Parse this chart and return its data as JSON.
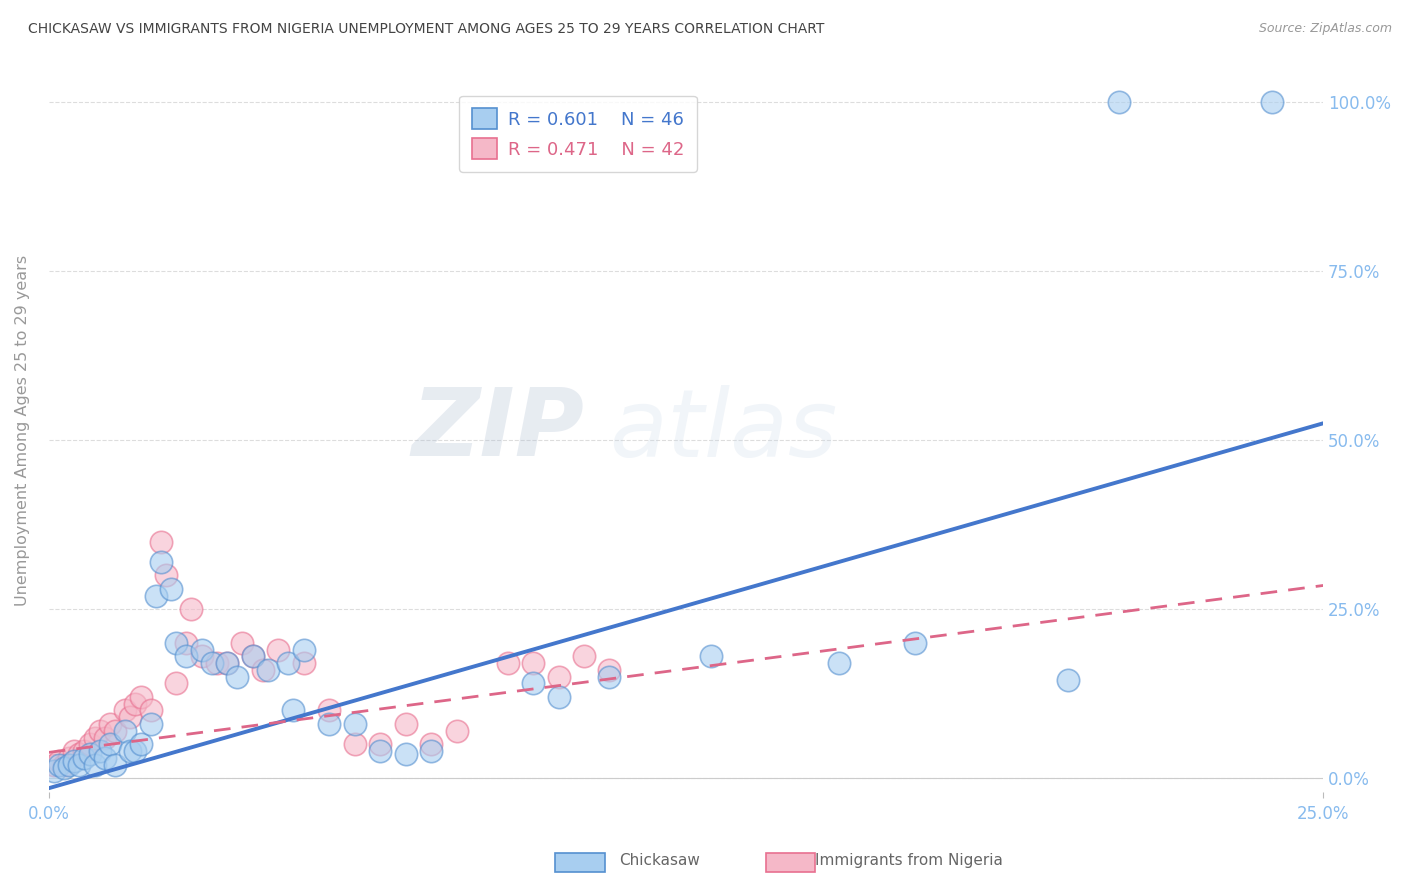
{
  "title": "CHICKASAW VS IMMIGRANTS FROM NIGERIA UNEMPLOYMENT AMONG AGES 25 TO 29 YEARS CORRELATION CHART",
  "source": "Source: ZipAtlas.com",
  "ylabel": "Unemployment Among Ages 25 to 29 years",
  "xlim": [
    0.0,
    0.25
  ],
  "ylim": [
    -0.02,
    1.05
  ],
  "ytick_labels": [
    "0.0%",
    "25.0%",
    "50.0%",
    "75.0%",
    "100.0%"
  ],
  "ytick_values": [
    0.0,
    0.25,
    0.5,
    0.75,
    1.0
  ],
  "xtick_labels": [
    "0.0%",
    "25.0%"
  ],
  "xtick_values": [
    0.0,
    0.25
  ],
  "watermark_zip": "ZIP",
  "watermark_atlas": "atlas",
  "legend_blue_R": "R = 0.601",
  "legend_blue_N": "N = 46",
  "legend_pink_R": "R = 0.471",
  "legend_pink_N": "N = 42",
  "blue_color": "#A8CEF0",
  "pink_color": "#F5B8C8",
  "blue_edge_color": "#5590D0",
  "pink_edge_color": "#E87090",
  "blue_line_color": "#4477CC",
  "pink_line_color": "#DD6688",
  "title_color": "#444444",
  "axis_label_color": "#999999",
  "right_tick_color": "#88BBEE",
  "grid_color": "#DDDDDD",
  "blue_scatter": [
    [
      0.001,
      0.01
    ],
    [
      0.002,
      0.02
    ],
    [
      0.003,
      0.015
    ],
    [
      0.004,
      0.02
    ],
    [
      0.005,
      0.025
    ],
    [
      0.006,
      0.02
    ],
    [
      0.007,
      0.03
    ],
    [
      0.008,
      0.035
    ],
    [
      0.009,
      0.02
    ],
    [
      0.01,
      0.04
    ],
    [
      0.011,
      0.03
    ],
    [
      0.012,
      0.05
    ],
    [
      0.013,
      0.02
    ],
    [
      0.015,
      0.07
    ],
    [
      0.016,
      0.04
    ],
    [
      0.017,
      0.04
    ],
    [
      0.018,
      0.05
    ],
    [
      0.02,
      0.08
    ],
    [
      0.021,
      0.27
    ],
    [
      0.022,
      0.32
    ],
    [
      0.024,
      0.28
    ],
    [
      0.025,
      0.2
    ],
    [
      0.027,
      0.18
    ],
    [
      0.03,
      0.19
    ],
    [
      0.032,
      0.17
    ],
    [
      0.035,
      0.17
    ],
    [
      0.037,
      0.15
    ],
    [
      0.04,
      0.18
    ],
    [
      0.043,
      0.16
    ],
    [
      0.047,
      0.17
    ],
    [
      0.05,
      0.19
    ],
    [
      0.055,
      0.08
    ],
    [
      0.06,
      0.08
    ],
    [
      0.065,
      0.04
    ],
    [
      0.07,
      0.035
    ],
    [
      0.075,
      0.04
    ],
    [
      0.095,
      0.14
    ],
    [
      0.1,
      0.12
    ],
    [
      0.11,
      0.15
    ],
    [
      0.13,
      0.18
    ],
    [
      0.155,
      0.17
    ],
    [
      0.17,
      0.2
    ],
    [
      0.2,
      0.145
    ],
    [
      0.21,
      1.0
    ],
    [
      0.24,
      1.0
    ],
    [
      0.048,
      0.1
    ]
  ],
  "pink_scatter": [
    [
      0.001,
      0.02
    ],
    [
      0.002,
      0.025
    ],
    [
      0.003,
      0.02
    ],
    [
      0.004,
      0.03
    ],
    [
      0.005,
      0.04
    ],
    [
      0.006,
      0.035
    ],
    [
      0.007,
      0.04
    ],
    [
      0.008,
      0.05
    ],
    [
      0.009,
      0.06
    ],
    [
      0.01,
      0.07
    ],
    [
      0.011,
      0.06
    ],
    [
      0.012,
      0.08
    ],
    [
      0.013,
      0.07
    ],
    [
      0.015,
      0.1
    ],
    [
      0.016,
      0.09
    ],
    [
      0.017,
      0.11
    ],
    [
      0.018,
      0.12
    ],
    [
      0.02,
      0.1
    ],
    [
      0.022,
      0.35
    ],
    [
      0.023,
      0.3
    ],
    [
      0.025,
      0.14
    ],
    [
      0.027,
      0.2
    ],
    [
      0.028,
      0.25
    ],
    [
      0.03,
      0.18
    ],
    [
      0.033,
      0.17
    ],
    [
      0.035,
      0.17
    ],
    [
      0.038,
      0.2
    ],
    [
      0.04,
      0.18
    ],
    [
      0.042,
      0.16
    ],
    [
      0.045,
      0.19
    ],
    [
      0.05,
      0.17
    ],
    [
      0.055,
      0.1
    ],
    [
      0.06,
      0.05
    ],
    [
      0.065,
      0.05
    ],
    [
      0.07,
      0.08
    ],
    [
      0.075,
      0.05
    ],
    [
      0.08,
      0.07
    ],
    [
      0.09,
      0.17
    ],
    [
      0.095,
      0.17
    ],
    [
      0.1,
      0.15
    ],
    [
      0.105,
      0.18
    ],
    [
      0.11,
      0.16
    ]
  ],
  "blue_trendline": [
    [
      0.0,
      -0.015
    ],
    [
      0.25,
      0.525
    ]
  ],
  "pink_trendline": [
    [
      0.0,
      0.038
    ],
    [
      0.25,
      0.285
    ]
  ]
}
